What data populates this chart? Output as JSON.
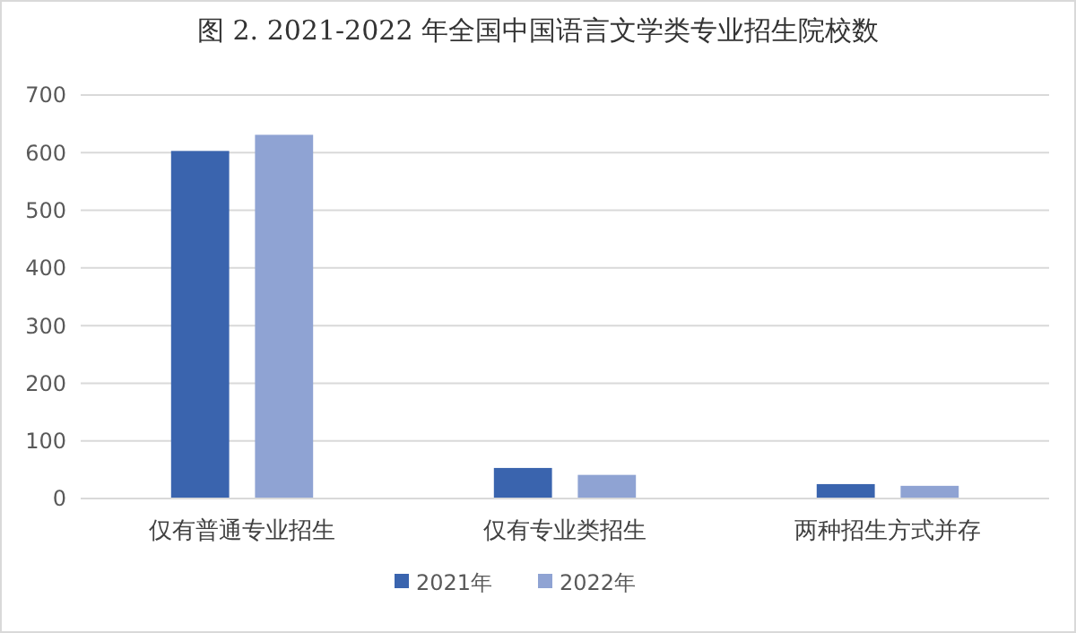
{
  "chart_data": {
    "type": "bar",
    "title": "图 2. 2021-2022 年全国中国语言文学类专业招生院校数",
    "categories": [
      "仅有普通专业招生",
      "仅有专业类招生",
      "两种招生方式并存"
    ],
    "series": [
      {
        "name": "2021年",
        "color": "#3a64ae",
        "values": [
          603,
          53,
          25
        ]
      },
      {
        "name": "2022年",
        "color": "#8fa3d3",
        "values": [
          631,
          41,
          22
        ]
      }
    ],
    "ylim": [
      0,
      700
    ],
    "yticks": [
      0,
      100,
      200,
      300,
      400,
      500,
      600,
      700
    ],
    "grid": "y",
    "legend": "bottom"
  }
}
